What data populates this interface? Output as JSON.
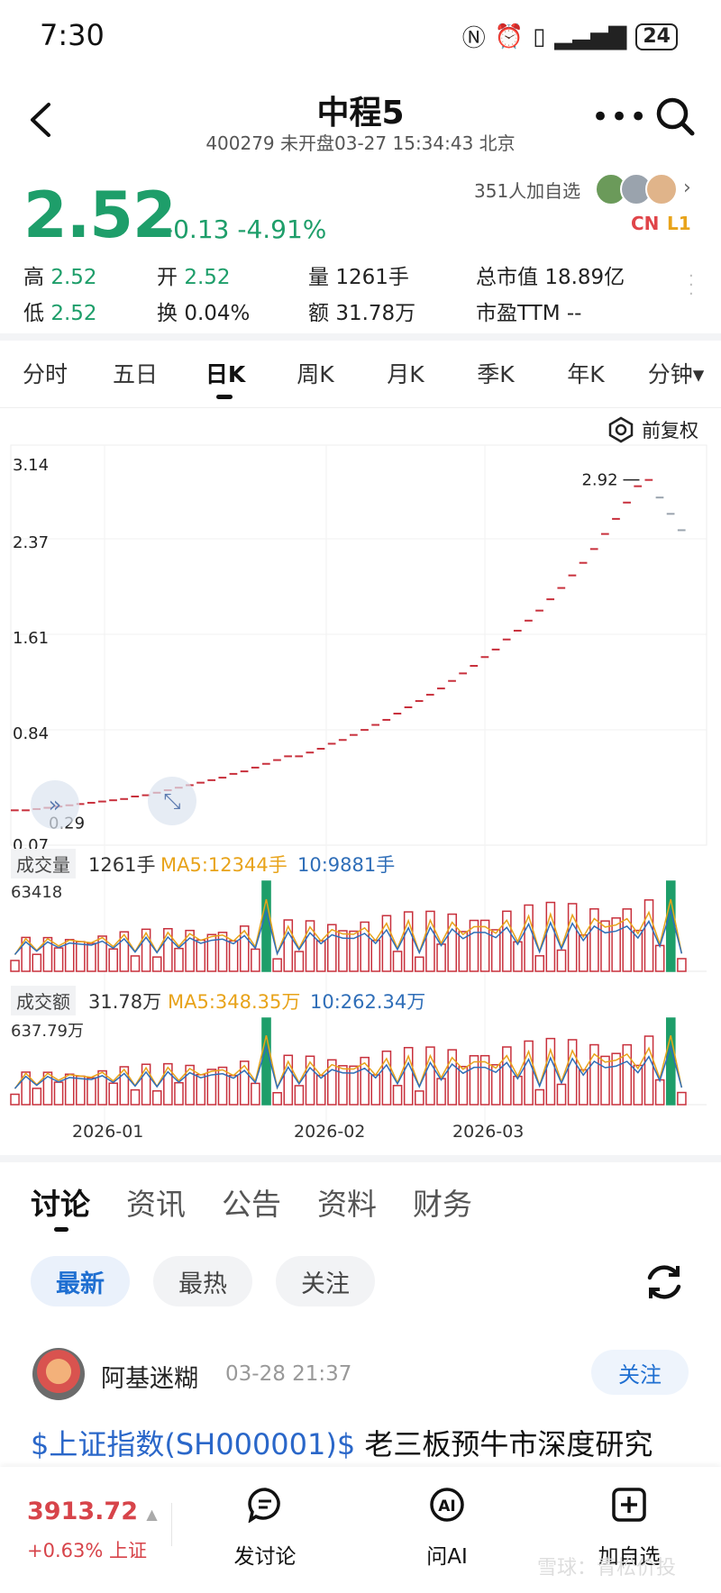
{
  "status_bar": {
    "time": "7:30",
    "icons": [
      "nfc-icon",
      "alarm-icon",
      "vibrate-icon",
      "signal-icon"
    ],
    "battery": "24"
  },
  "header": {
    "title": "中程5",
    "subtitle": "400279 未开盘03-27 15:34:43 北京"
  },
  "quote": {
    "price": "2.52",
    "change": "-0.13",
    "change_pct": "-4.91%",
    "followers": "351人加自选",
    "badge_cn": "CN",
    "badge_l1": "L1",
    "high_label": "高",
    "high": "2.52",
    "low_label": "低",
    "low": "2.52",
    "open_label": "开",
    "open": "2.52",
    "turnover_label": "换",
    "turnover": "0.04%",
    "volume_label": "量",
    "volume": "1261手",
    "amount_label": "额",
    "amount": "31.78万",
    "mktcap_label": "总市值",
    "mktcap": "18.89亿",
    "pe_label": "市盈TTM",
    "pe": "--"
  },
  "period_tabs": [
    "分时",
    "五日",
    "日K",
    "周K",
    "月K",
    "季K",
    "年K",
    "分钟"
  ],
  "active_period": "日K",
  "adjust_label": "前复权",
  "kline": {
    "y_ticks": [
      "3.14",
      "2.37",
      "1.61",
      "0.84",
      "0.07"
    ],
    "high_label": "2.92",
    "low_label": "0.29",
    "x_ticks": [
      "2026-01",
      "2026-02",
      "2026-03"
    ]
  },
  "volume_panel": {
    "label": "成交量",
    "value": "1261手",
    "ma5": "MA5:12344手",
    "ma10": "10:9881手",
    "max": "63418"
  },
  "amount_panel": {
    "label": "成交额",
    "value": "31.78万",
    "ma5": "MA5:348.35万",
    "ma10": "10:262.34万",
    "max": "637.79万"
  },
  "chart_data": {
    "type": "candlestick",
    "ylim": [
      0.07,
      3.14
    ],
    "closes": [
      0.29,
      0.29,
      0.3,
      0.31,
      0.32,
      0.33,
      0.34,
      0.35,
      0.36,
      0.37,
      0.38,
      0.4,
      0.41,
      0.43,
      0.45,
      0.47,
      0.49,
      0.51,
      0.53,
      0.55,
      0.58,
      0.6,
      0.63,
      0.66,
      0.69,
      0.72,
      0.72,
      0.75,
      0.78,
      0.82,
      0.85,
      0.89,
      0.93,
      0.97,
      1.01,
      1.06,
      1.11,
      1.16,
      1.21,
      1.26,
      1.32,
      1.38,
      1.44,
      1.51,
      1.57,
      1.65,
      1.72,
      1.8,
      1.88,
      1.97,
      2.06,
      2.16,
      2.26,
      2.37,
      2.49,
      2.61,
      2.74,
      2.87,
      2.92,
      2.78,
      2.65,
      2.52
    ],
    "volume_max": 63418,
    "amount_max": "637.79万",
    "colors": {
      "up": "#c8303c",
      "down": "#1e9e6a",
      "ma5": "#e8a31a",
      "ma10": "#2f6eb8"
    }
  },
  "news_tabs": [
    "讨论",
    "资讯",
    "公告",
    "资料",
    "财务"
  ],
  "filter_pills": [
    "最新",
    "最热",
    "关注"
  ],
  "post": {
    "user": "阿基迷糊",
    "time": "03-28 21:37",
    "follow_label": "关注",
    "link": "$上证指数(SH000001)$",
    "text": " 老三板预牛市深度研究"
  },
  "bottom_bar": {
    "index_value": "3913.72",
    "index_change": "+0.63% 上证",
    "discuss": "发讨论",
    "ask_ai": "问AI",
    "add_watch": "加自选"
  },
  "watermark": "雪球：青松价投"
}
